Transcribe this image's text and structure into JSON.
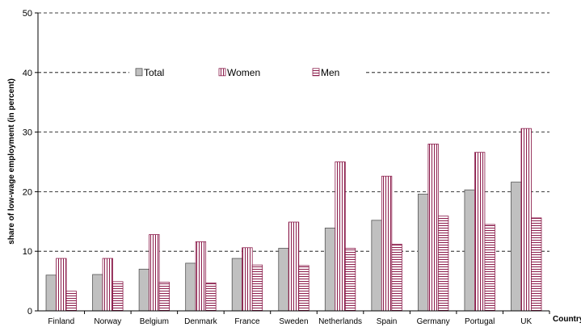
{
  "chart_data": {
    "type": "bar",
    "title": "",
    "xlabel": "Country",
    "ylabel": "share of low-wage employment (in percent)",
    "ylim": [
      0,
      50
    ],
    "yticks": [
      "0",
      "10",
      "20",
      "30",
      "40",
      "50"
    ],
    "grid": "horizontal dashed",
    "legend_placement": "top-center inside plot",
    "categories": [
      "Finland",
      "Norway",
      "Belgium",
      "Denmark",
      "France",
      "Sweden",
      "Netherlands",
      "Spain",
      "Germany",
      "Portugal",
      "UK"
    ],
    "series": [
      {
        "name": "Total",
        "pattern": "solid-gray",
        "color": "#c0c0c0",
        "values": [
          6.0,
          6.1,
          7.0,
          8.0,
          8.8,
          10.5,
          13.9,
          15.2,
          19.6,
          20.3,
          21.6
        ]
      },
      {
        "name": "Women",
        "pattern": "vertical-lines",
        "color": "#8b1c4b",
        "values": [
          8.8,
          8.8,
          12.8,
          11.6,
          10.6,
          14.9,
          25.0,
          22.6,
          28.0,
          26.6,
          30.6
        ]
      },
      {
        "name": "Men",
        "pattern": "horizontal-lines",
        "color": "#8b1c4b",
        "values": [
          3.3,
          4.9,
          4.8,
          4.7,
          7.7,
          7.6,
          10.5,
          11.2,
          15.9,
          14.5,
          15.6
        ]
      }
    ]
  }
}
